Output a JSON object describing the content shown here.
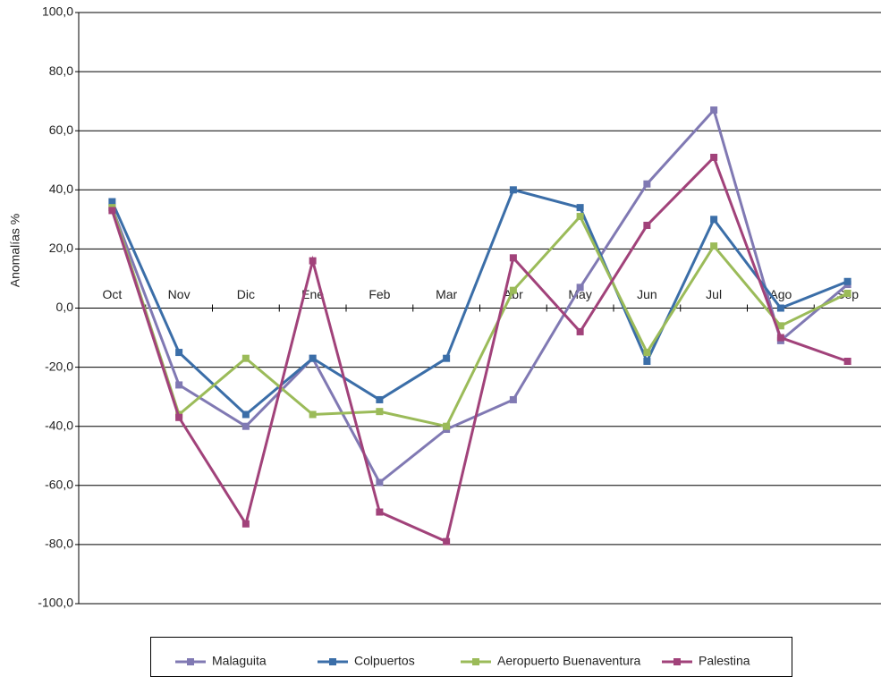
{
  "chart_data": {
    "type": "line",
    "y_label": "Anomalías %",
    "categories": [
      "Oct",
      "Nov",
      "Dic",
      "Ene",
      "Feb",
      "Mar",
      "Abr",
      "May",
      "Jun",
      "Jul",
      "Ago",
      "Sep"
    ],
    "series": [
      {
        "name": "Malaguita",
        "color": "#8079b3",
        "values": [
          34,
          -26,
          -40,
          -17,
          -59,
          -41,
          -31,
          7,
          42,
          67,
          -11,
          8
        ]
      },
      {
        "name": "Colpuertos",
        "color": "#3b6ea8",
        "values": [
          36,
          -15,
          -36,
          -17,
          -31,
          -17,
          40,
          34,
          -18,
          30,
          0,
          9
        ]
      },
      {
        "name": "Aeropuerto Buenaventura",
        "color": "#9bbb59",
        "values": [
          34,
          -36,
          -17,
          -36,
          -35,
          -40,
          6,
          31,
          -15,
          21,
          -6,
          5
        ]
      },
      {
        "name": "Palestina",
        "color": "#a1427a",
        "values": [
          33,
          -37,
          -73,
          16,
          -69,
          -79,
          17,
          -8,
          28,
          51,
          -10,
          -18
        ]
      }
    ],
    "ylim": [
      -100,
      100
    ],
    "yticks": [
      {
        "value": -100,
        "label": "-100,0"
      },
      {
        "value": -80,
        "label": "-80,0"
      },
      {
        "value": -60,
        "label": "-60,0"
      },
      {
        "value": -40,
        "label": "-40,0"
      },
      {
        "value": -20,
        "label": "-20,0"
      },
      {
        "value": 0,
        "label": "0,0"
      },
      {
        "value": 20,
        "label": "20,0"
      },
      {
        "value": 40,
        "label": "40,0"
      },
      {
        "value": 60,
        "label": "60,0"
      },
      {
        "value": 80,
        "label": "80,0"
      },
      {
        "value": 100,
        "label": "100,0"
      }
    ],
    "grid": true
  }
}
